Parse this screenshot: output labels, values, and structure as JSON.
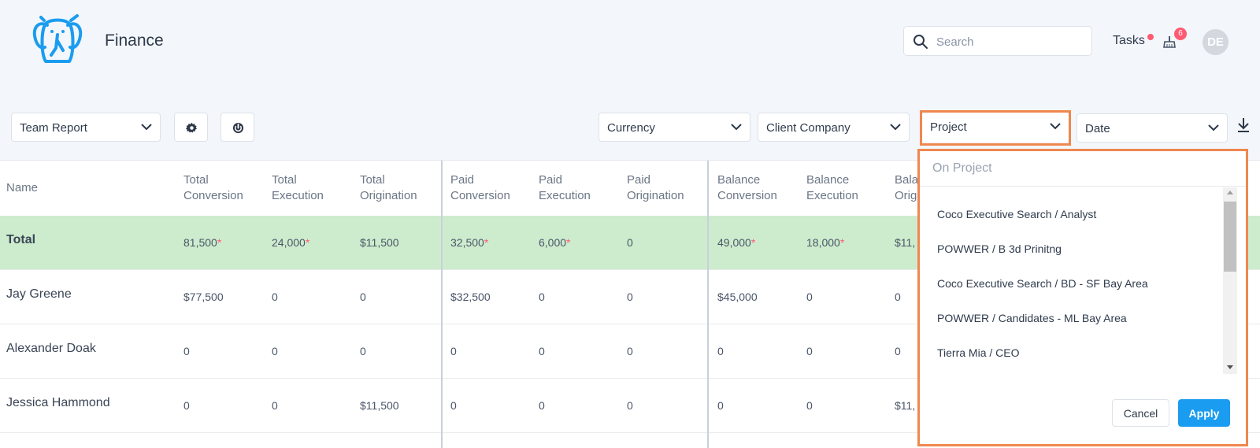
{
  "header": {
    "logo_icon": "elephant-logo-icon",
    "app_title": "Finance",
    "search_placeholder": "Search",
    "tasks_label": "Tasks",
    "notification_count": "6",
    "avatar_initials": "DE",
    "accent_color": "#1a9cf0",
    "alert_color": "#ff5a72"
  },
  "toolbar": {
    "report_select": "Team Report",
    "settings_icon": "gear-icon",
    "refresh_icon": "power-refresh-icon",
    "filters": {
      "currency": "Currency",
      "client_company": "Client Company",
      "project": "Project",
      "date": "Date"
    },
    "download_icon": "download-icon"
  },
  "table": {
    "columns": [
      {
        "l1": "Name",
        "l2": ""
      },
      {
        "l1": "Total",
        "l2": "Conversion"
      },
      {
        "l1": "Total",
        "l2": "Execution"
      },
      {
        "l1": "Total",
        "l2": "Origination"
      },
      {
        "l1": "Paid",
        "l2": "Conversion"
      },
      {
        "l1": "Paid",
        "l2": "Execution"
      },
      {
        "l1": "Paid",
        "l2": "Origination"
      },
      {
        "l1": "Balance",
        "l2": "Conversion"
      },
      {
        "l1": "Balance",
        "l2": "Execution"
      },
      {
        "l1": "Bala",
        "l2": "Orig"
      }
    ],
    "rows": [
      {
        "name": "Total",
        "cells": [
          {
            "v": "81,500",
            "a": "*"
          },
          {
            "v": "24,000",
            "a": "*"
          },
          {
            "v": "$11,500",
            "a": ""
          },
          {
            "v": "32,500",
            "a": "*"
          },
          {
            "v": "6,000",
            "a": "*"
          },
          {
            "v": "0",
            "a": ""
          },
          {
            "v": "49,000",
            "a": "*"
          },
          {
            "v": "18,000",
            "a": "*"
          },
          {
            "v": "$11,",
            "a": ""
          }
        ]
      },
      {
        "name": "Jay Greene",
        "cells": [
          {
            "v": "$77,500",
            "a": ""
          },
          {
            "v": "0",
            "a": ""
          },
          {
            "v": "0",
            "a": ""
          },
          {
            "v": "$32,500",
            "a": ""
          },
          {
            "v": "0",
            "a": ""
          },
          {
            "v": "0",
            "a": ""
          },
          {
            "v": "$45,000",
            "a": ""
          },
          {
            "v": "0",
            "a": ""
          },
          {
            "v": "0",
            "a": ""
          }
        ]
      },
      {
        "name": "Alexander Doak",
        "cells": [
          {
            "v": "0",
            "a": ""
          },
          {
            "v": "0",
            "a": ""
          },
          {
            "v": "0",
            "a": ""
          },
          {
            "v": "0",
            "a": ""
          },
          {
            "v": "0",
            "a": ""
          },
          {
            "v": "0",
            "a": ""
          },
          {
            "v": "0",
            "a": ""
          },
          {
            "v": "0",
            "a": ""
          },
          {
            "v": "0",
            "a": ""
          }
        ]
      },
      {
        "name": "Jessica Hammond",
        "cells": [
          {
            "v": "0",
            "a": ""
          },
          {
            "v": "0",
            "a": ""
          },
          {
            "v": "$11,500",
            "a": ""
          },
          {
            "v": "0",
            "a": ""
          },
          {
            "v": "0",
            "a": ""
          },
          {
            "v": "0",
            "a": ""
          },
          {
            "v": "0",
            "a": ""
          },
          {
            "v": "0",
            "a": ""
          },
          {
            "v": "$11,",
            "a": ""
          }
        ]
      }
    ]
  },
  "project_dropdown": {
    "search_placeholder": "On Project",
    "items": [
      "Coco Executive Search / Analyst",
      "POWWER / B 3d Prinitng",
      "Coco Executive Search / BD - SF Bay Area",
      "POWWER / Candidates - ML Bay Area",
      "Tierra Mia / CEO"
    ],
    "cancel_label": "Cancel",
    "apply_label": "Apply"
  }
}
